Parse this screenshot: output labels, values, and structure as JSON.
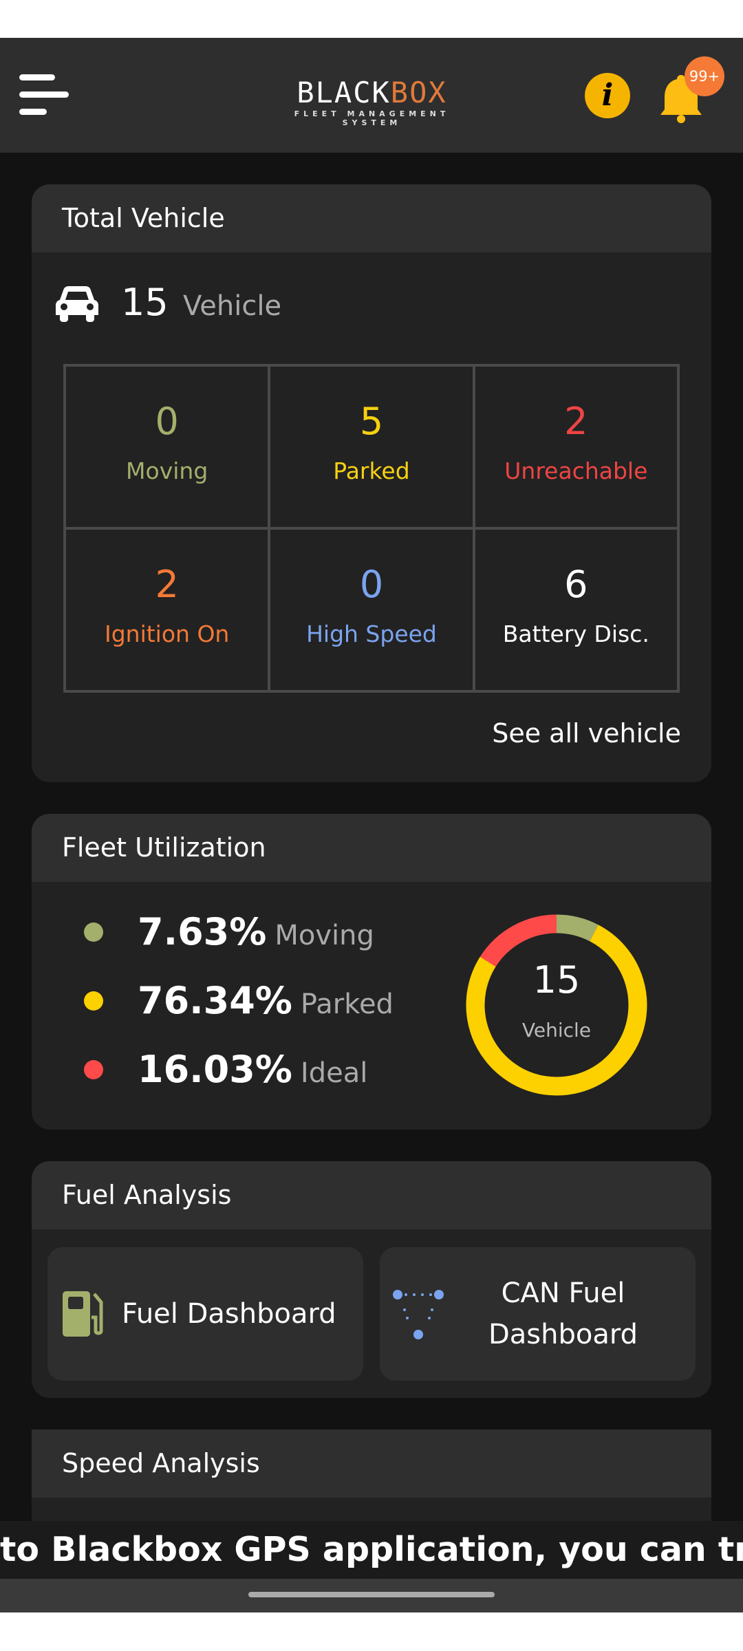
{
  "header": {
    "logo_main_left": "BLACK",
    "logo_main_right": "BOX",
    "logo_sub": "FLEET MANAGEMENT SYSTEM",
    "notification_count": "99+",
    "icons": [
      "menu-icon",
      "info-icon",
      "bell-icon"
    ]
  },
  "total_vehicle": {
    "title": "Total Vehicle",
    "count": "15",
    "unit": "Vehicle",
    "stats": [
      {
        "value": "0",
        "label": "Moving",
        "color": "#a3b06c"
      },
      {
        "value": "5",
        "label": "Parked",
        "color": "#f7d111"
      },
      {
        "value": "2",
        "label": "Unreachable",
        "color": "#ef4444"
      },
      {
        "value": "2",
        "label": "Ignition On",
        "color": "#f47a36"
      },
      {
        "value": "0",
        "label": "High Speed",
        "color": "#7ba4f0"
      },
      {
        "value": "6",
        "label": "Battery Disc.",
        "color": "#ffffff"
      }
    ],
    "see_all": "See all vehicle"
  },
  "fleet_utilization": {
    "title": "Fleet Utilization",
    "items": [
      {
        "percent": "7.63%",
        "label": "Moving",
        "value": 7.63,
        "color": "#a3b06c"
      },
      {
        "percent": "76.34%",
        "label": "Parked",
        "value": 76.34,
        "color": "#fdd000"
      },
      {
        "percent": "16.03%",
        "label": "Ideal",
        "value": 16.03,
        "color": "#ff4a4a"
      }
    ],
    "donut_count": "15",
    "donut_label": "Vehicle"
  },
  "fuel_analysis": {
    "title": "Fuel Analysis",
    "buttons": [
      {
        "label": "Fuel Dashboard"
      },
      {
        "label_line1": "CAN Fuel",
        "label_line2": "Dashboard"
      }
    ]
  },
  "speed_analysis": {
    "title": "Speed Analysis"
  },
  "marquee": "to Blackbox GPS application, you can track y"
}
